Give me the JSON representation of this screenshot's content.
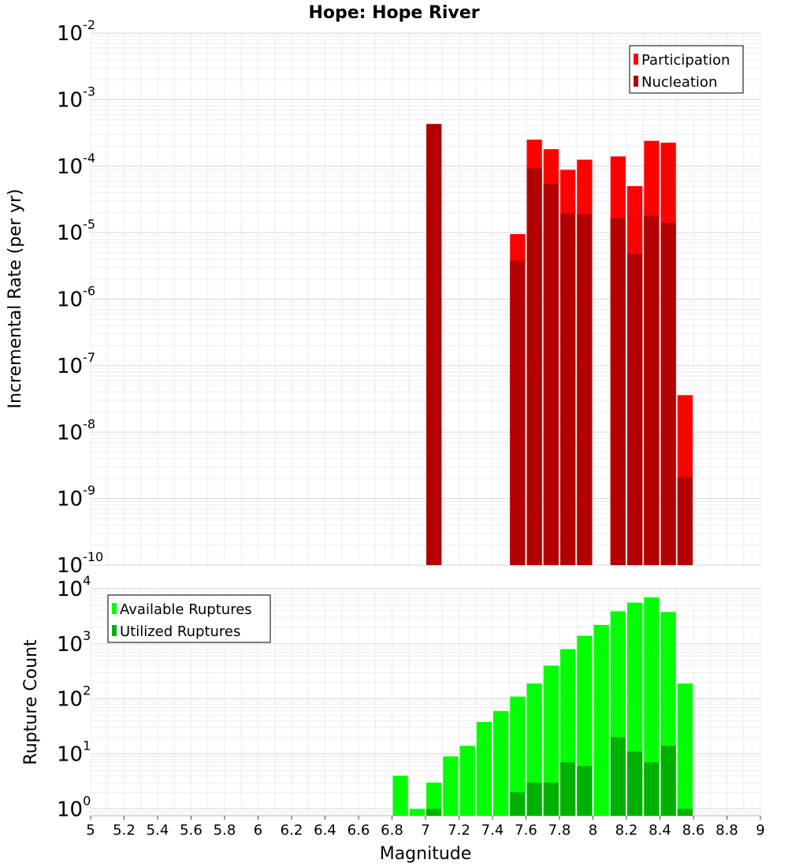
{
  "chart_data": [
    {
      "type": "bar",
      "title": "Hope: Hope River",
      "xlabel": "",
      "ylabel": "Incremental Rate (per yr)",
      "yscale": "log",
      "ylim": [
        1e-10,
        0.01
      ],
      "y_ticks": [
        {
          "base": "10",
          "exp": "-10"
        },
        {
          "base": "10",
          "exp": "-9"
        },
        {
          "base": "10",
          "exp": "-8"
        },
        {
          "base": "10",
          "exp": "-7"
        },
        {
          "base": "10",
          "exp": "-6"
        },
        {
          "base": "10",
          "exp": "-5"
        },
        {
          "base": "10",
          "exp": "-4"
        },
        {
          "base": "10",
          "exp": "-3"
        },
        {
          "base": "10",
          "exp": "-2"
        }
      ],
      "grid": true,
      "legend_position": "top-right",
      "bin_width": 0.1,
      "series": [
        {
          "name": "Participation",
          "color": "#ff0000",
          "x": [
            7.0,
            7.5,
            7.6,
            7.7,
            7.8,
            7.9,
            8.1,
            8.2,
            8.3,
            8.4,
            8.5
          ],
          "values": [
            0.00043,
            9.5e-06,
            0.00025,
            0.00018,
            8.8e-05,
            0.000125,
            0.00014,
            5e-05,
            0.00024,
            0.000225,
            3.6e-08
          ]
        },
        {
          "name": "Nucleation",
          "color": "#b30000",
          "x": [
            7.0,
            7.5,
            7.6,
            7.7,
            7.8,
            7.9,
            8.1,
            8.2,
            8.3,
            8.4,
            8.5
          ],
          "values": [
            0.00043,
            3.8e-06,
            9.3e-05,
            5.4e-05,
            1.95e-05,
            1.9e-05,
            1.65e-05,
            4.8e-06,
            1.8e-05,
            1.4e-05,
            2.1e-09
          ]
        }
      ]
    },
    {
      "type": "bar",
      "xlabel": "Magnitude",
      "ylabel": "Rupture Count",
      "yscale": "log",
      "ylim": [
        0.75,
        10000
      ],
      "y_ticks": [
        {
          "base": "10",
          "exp": "0"
        },
        {
          "base": "10",
          "exp": "1"
        },
        {
          "base": "10",
          "exp": "2"
        },
        {
          "base": "10",
          "exp": "3"
        },
        {
          "base": "10",
          "exp": "4"
        }
      ],
      "x_ticks": [
        "5",
        "5.2",
        "5.4",
        "5.6",
        "5.8",
        "6",
        "6.2",
        "6.4",
        "6.6",
        "6.8",
        "7",
        "7.2",
        "7.4",
        "7.6",
        "7.8",
        "8",
        "8.2",
        "8.4",
        "8.6",
        "8.8",
        "9"
      ],
      "xlim": [
        5,
        9
      ],
      "grid": true,
      "legend_position": "top-left",
      "bin_width": 0.1,
      "series": [
        {
          "name": "Available Ruptures",
          "color": "#00ff00",
          "x": [
            6.8,
            6.9,
            7.0,
            7.1,
            7.2,
            7.3,
            7.4,
            7.5,
            7.6,
            7.7,
            7.8,
            7.9,
            8.0,
            8.1,
            8.2,
            8.3,
            8.4,
            8.5
          ],
          "values": [
            4,
            1,
            3,
            9,
            14,
            38,
            60,
            110,
            190,
            400,
            800,
            1400,
            2200,
            3900,
            5600,
            7000,
            3800,
            190
          ]
        },
        {
          "name": "Utilized Ruptures",
          "color": "#00b000",
          "x": [
            7.0,
            7.5,
            7.6,
            7.7,
            7.8,
            7.9,
            8.1,
            8.2,
            8.3,
            8.4,
            8.5
          ],
          "values": [
            1,
            2,
            3,
            3,
            7,
            6,
            20,
            11,
            7,
            14,
            1
          ]
        }
      ]
    }
  ]
}
